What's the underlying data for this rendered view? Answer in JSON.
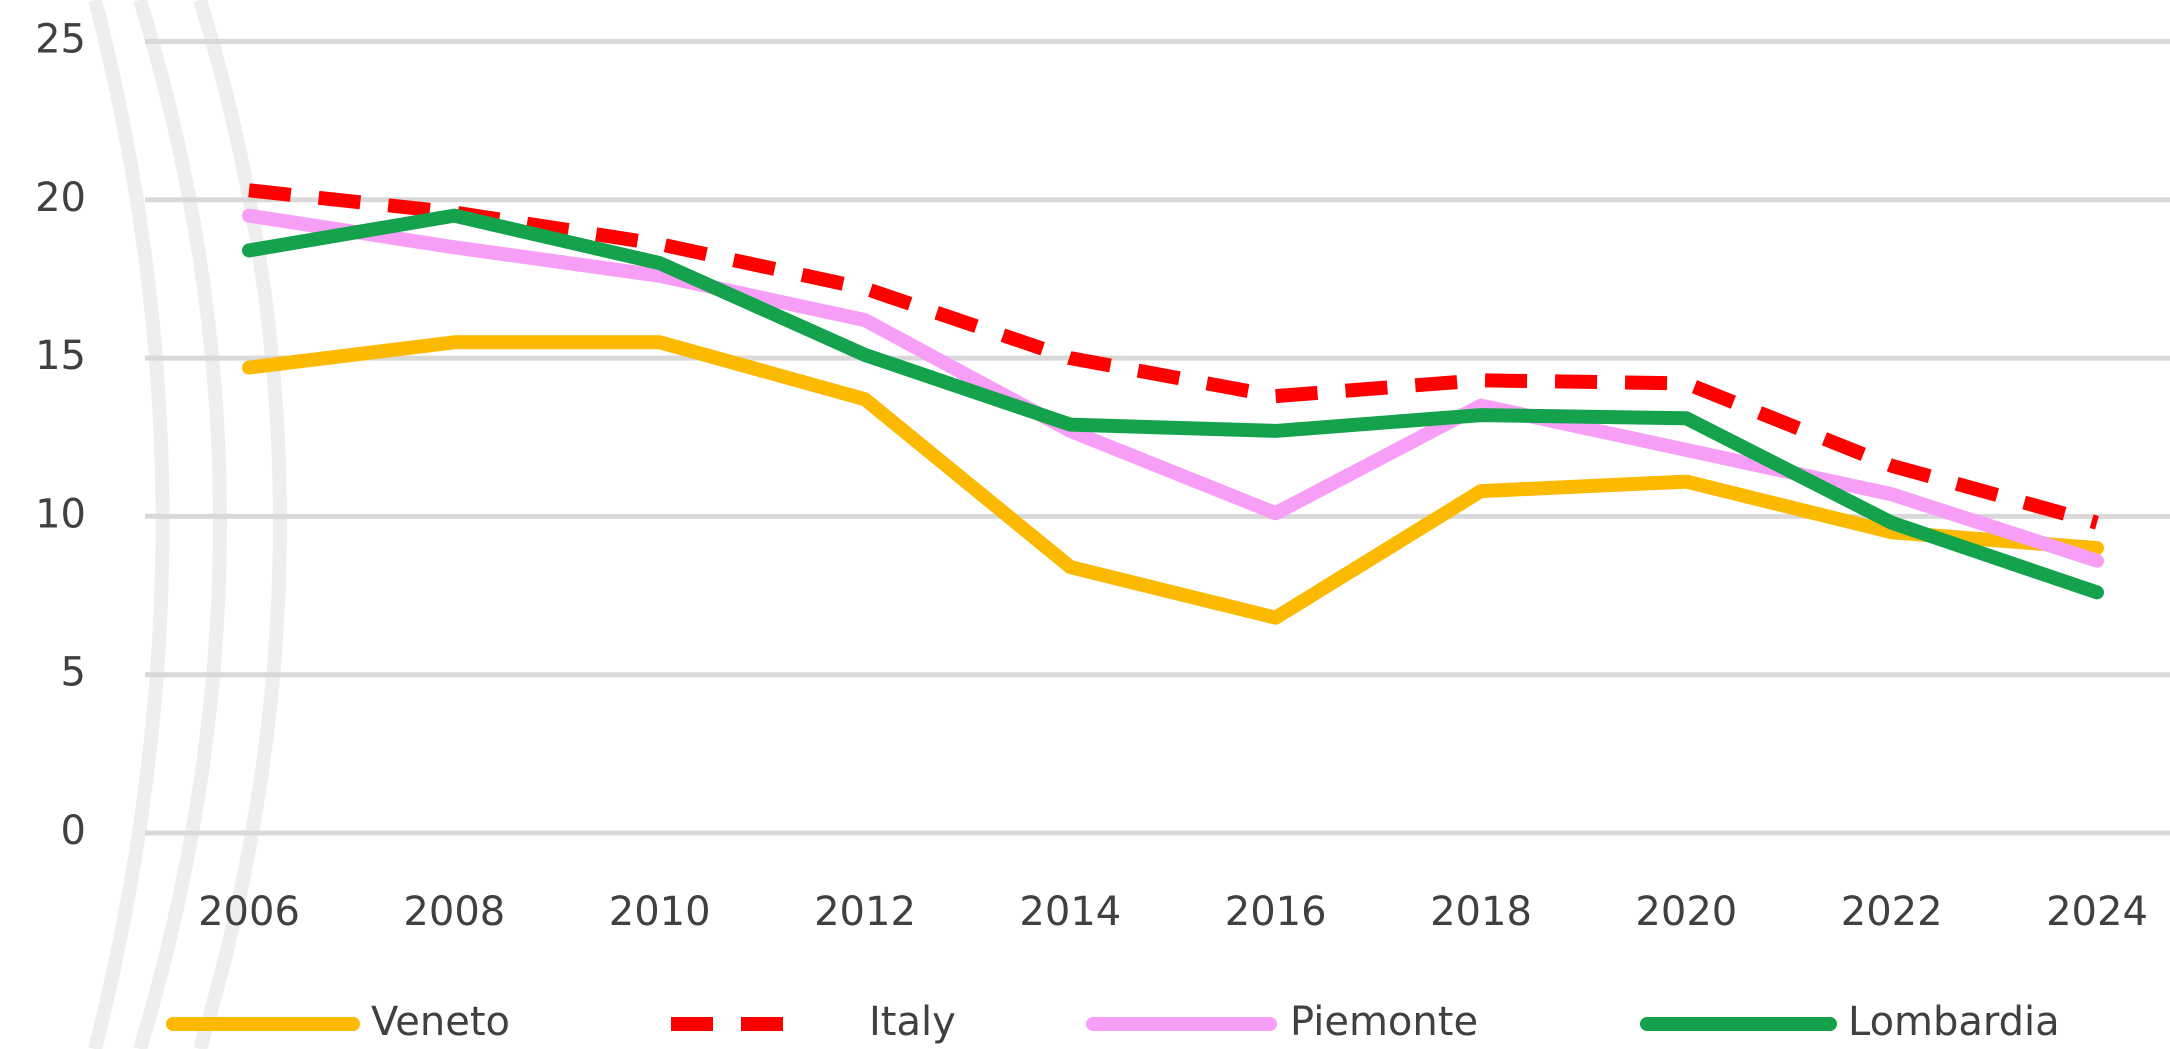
{
  "chart_data": {
    "type": "line",
    "categories": [
      "2006",
      "2008",
      "2010",
      "2012",
      "2014",
      "2016",
      "2018",
      "2020",
      "2022",
      "2024"
    ],
    "series": [
      {
        "name": "Veneto",
        "color": "#fbb900",
        "dash": false,
        "values": [
          14.7,
          15.5,
          15.5,
          13.7,
          8.4,
          6.8,
          10.8,
          11.1,
          9.5,
          9.0
        ]
      },
      {
        "name": "Italy",
        "color": "#ff0000",
        "dash": true,
        "values": [
          20.3,
          19.6,
          18.6,
          17.2,
          15.0,
          13.8,
          14.3,
          14.2,
          11.6,
          9.8
        ]
      },
      {
        "name": "Piemonte",
        "color": "#f79ef7",
        "dash": false,
        "values": [
          19.5,
          18.5,
          17.6,
          16.2,
          12.7,
          10.1,
          13.5,
          12.1,
          10.7,
          8.6
        ]
      },
      {
        "name": "Lombardia",
        "color": "#14a34c",
        "dash": false,
        "values": [
          18.4,
          19.5,
          18.0,
          15.1,
          12.9,
          12.7,
          13.2,
          13.1,
          9.8,
          7.6
        ]
      }
    ],
    "ylim": [
      0,
      25
    ],
    "yticks": [
      0,
      5,
      10,
      15,
      20,
      25
    ],
    "grid": true,
    "legend": "bottom"
  }
}
